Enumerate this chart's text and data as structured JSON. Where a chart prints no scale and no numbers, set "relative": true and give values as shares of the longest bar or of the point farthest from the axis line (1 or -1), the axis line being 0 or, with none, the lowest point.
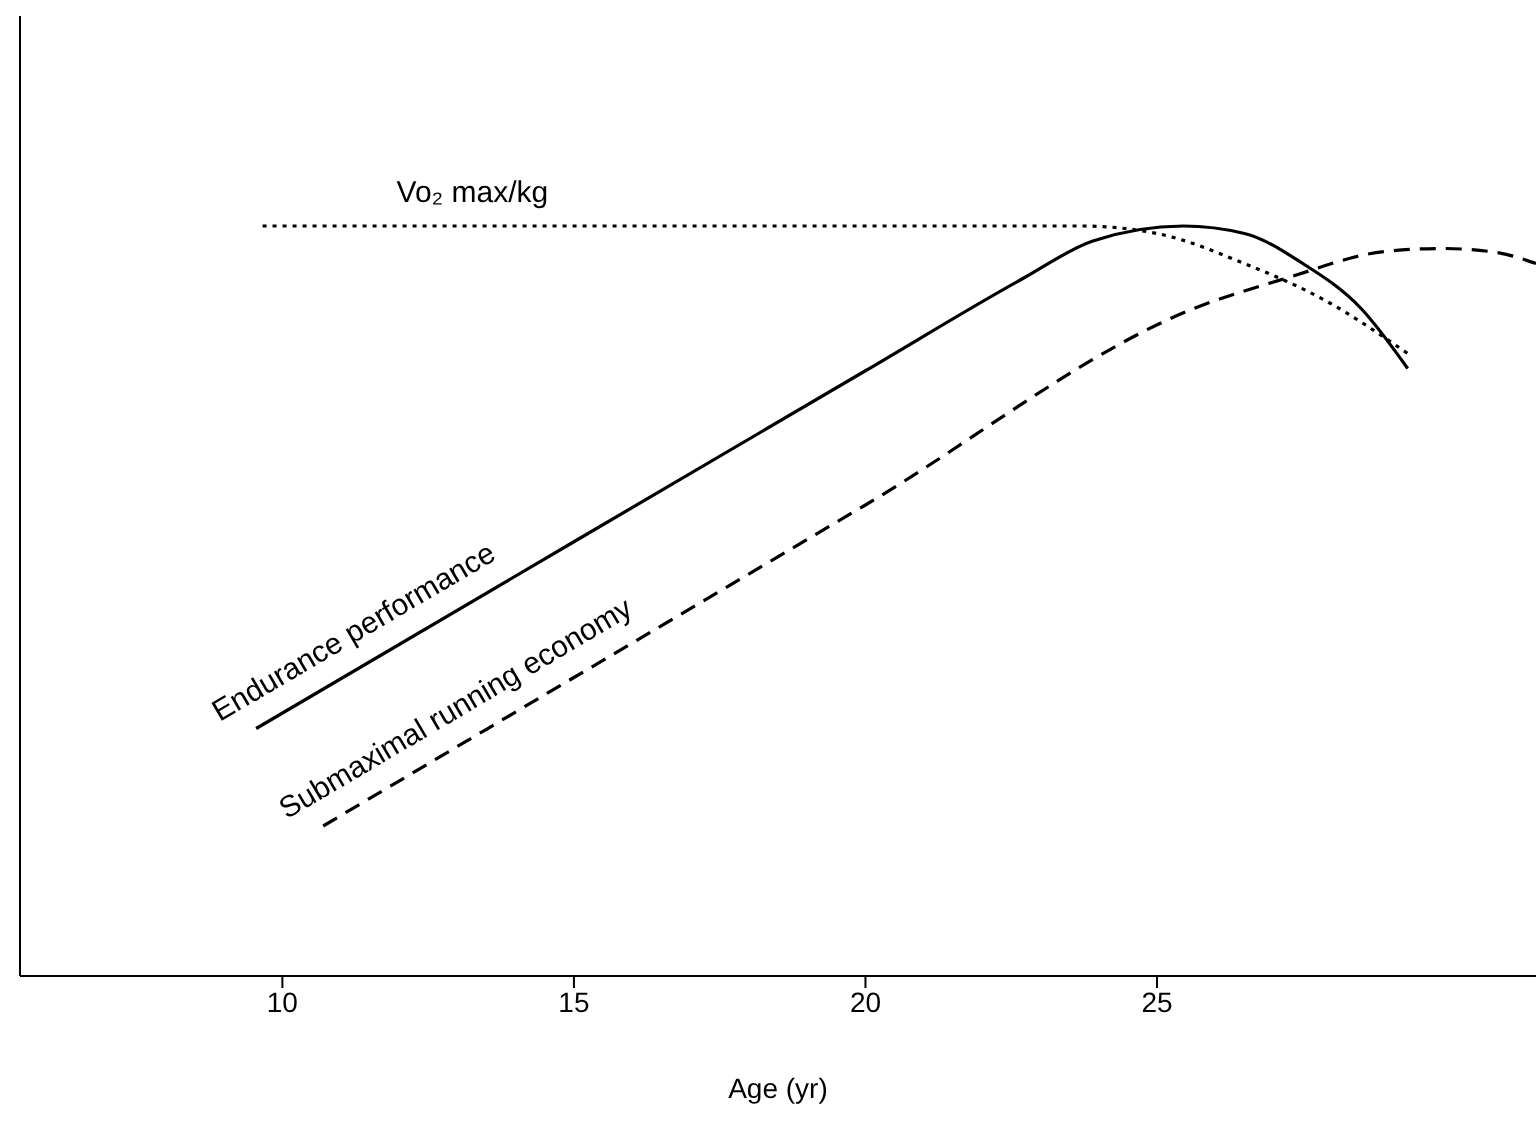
{
  "chart_data": {
    "type": "line",
    "xlabel": "Age (yr)",
    "relative": true,
    "xlim": [
      5.5,
      31.5
    ],
    "xticks": [
      10,
      15,
      20,
      25
    ],
    "grid": false,
    "legend": false,
    "marker": "none",
    "series": [
      {
        "name": "Vo₂ max/kg",
        "color": "#000000",
        "line_style": "dotted",
        "x": [
          9.66,
          15,
          20,
          23.7,
          25,
          26.5,
          27.9,
          29.3
        ],
        "values": [
          1.0,
          1.0,
          1.0,
          1.0,
          0.99,
          0.95,
          0.9,
          0.83
        ]
      },
      {
        "name": "Endurance performance",
        "color": "#000000",
        "line_style": "solid",
        "x": [
          9.55,
          15,
          20,
          22.7,
          23.9,
          25.45,
          26.5,
          27.5,
          28.5,
          29.3
        ],
        "values": [
          0.33,
          0.579,
          0.807,
          0.93,
          0.98,
          1.0,
          0.99,
          0.95,
          0.89,
          0.81
        ]
      },
      {
        "name": "Submaximal running economy",
        "color": "#000000",
        "line_style": "dashed",
        "x": [
          10.7,
          15,
          20,
          25.8,
          27.2,
          28.9,
          29.9,
          30.8,
          31.5
        ],
        "values": [
          0.2,
          0.398,
          0.628,
          0.895,
          0.93,
          0.966,
          0.97,
          0.965,
          0.95
        ]
      }
    ]
  }
}
